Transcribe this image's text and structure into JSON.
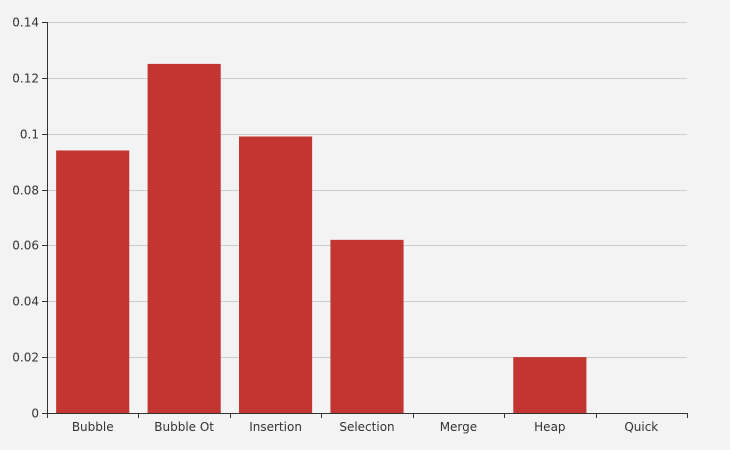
{
  "chart_data": {
    "type": "bar",
    "title": "",
    "xlabel": "",
    "ylabel": "",
    "categories": [
      "Bubble",
      "Bubble Ot",
      "Insertion",
      "Selection",
      "Merge",
      "Heap",
      "Quick"
    ],
    "values": [
      0.094,
      0.125,
      0.099,
      0.062,
      0,
      0.02,
      0
    ],
    "ylim": [
      0,
      0.14
    ],
    "yticks": [
      "0",
      "0.02",
      "0.04",
      "0.06",
      "0.08",
      "0.1",
      "0.12",
      "0.14"
    ],
    "grid": true,
    "legend": "none",
    "bar_color": "#c23531"
  }
}
